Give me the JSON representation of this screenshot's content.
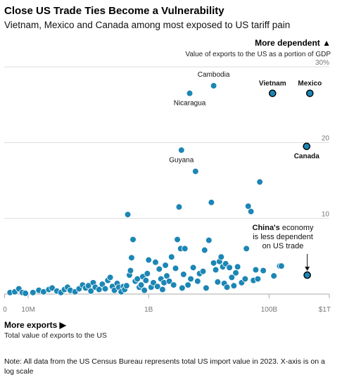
{
  "header": {
    "title": "Close US Trade Ties Become a Vulnerability",
    "subtitle": "Vietnam, Mexico and Canada among most exposed to US tariff pain"
  },
  "footer": {
    "note": "Note: All data from the US Census Bureau represents total US import value in 2023. X-axis is on a log scale"
  },
  "chart_data": {
    "type": "scatter",
    "y_axis": {
      "heading": "More dependent ▲",
      "label": "Value of exports to the US as a portion of GDP",
      "ticks": [
        {
          "value": 10,
          "label": "10"
        },
        {
          "value": 20,
          "label": "20"
        },
        {
          "value": 30,
          "label": "30%"
        }
      ],
      "ylim": [
        0,
        30
      ]
    },
    "x_axis": {
      "heading": "More exports ▶",
      "label": "Total value of exports to the US",
      "scale": "log",
      "ticks": [
        {
          "value": 10000000,
          "label": "10M"
        },
        {
          "value": 1000000000,
          "label": "1B"
        },
        {
          "value": 100000000000,
          "label": "100B"
        },
        {
          "value": 1000000000000,
          "label": "$1T"
        }
      ],
      "xlim": [
        4000000,
        1000000000000
      ]
    },
    "grid": true,
    "annotation": {
      "bold": "China's",
      "text": [
        " economy",
        "is less dependent",
        "on US trade"
      ],
      "target": "China"
    },
    "colors": {
      "point": "#1c86b5",
      "point_outline": "#ffffff",
      "highlight": "#1c86b5",
      "highlight_outline": "#000000",
      "grid": "#dddddd",
      "axis": "#aaaaaa"
    },
    "labeled_points": [
      {
        "name": "Cambodia",
        "x": 12000000000,
        "y": 27.5
      },
      {
        "name": "Nicaragua",
        "x": 4800000000,
        "y": 26.5
      },
      {
        "name": "Vietnam",
        "x": 114000000000,
        "y": 26.5,
        "highlight": true
      },
      {
        "name": "Mexico",
        "x": 475000000000,
        "y": 26.5,
        "highlight": true
      },
      {
        "name": "Canada",
        "x": 420000000000,
        "y": 19.5,
        "highlight": true
      },
      {
        "name": "Guyana",
        "x": 3500000000,
        "y": 19.0
      },
      {
        "name": "China",
        "x": 430000000000,
        "y": 2.5,
        "highlight": true
      }
    ],
    "points": [
      [
        5000000,
        0.2
      ],
      [
        6000000,
        0.3
      ],
      [
        7000000,
        0.7
      ],
      [
        8000000,
        0.2
      ],
      [
        9000000,
        0.1
      ],
      [
        12000000,
        0.2
      ],
      [
        15000000,
        0.5
      ],
      [
        18000000,
        0.3
      ],
      [
        22000000,
        0.6
      ],
      [
        25000000,
        0.8
      ],
      [
        30000000,
        0.4
      ],
      [
        35000000,
        0.2
      ],
      [
        40000000,
        0.6
      ],
      [
        45000000,
        0.9
      ],
      [
        50000000,
        0.5
      ],
      [
        60000000,
        0.3
      ],
      [
        70000000,
        0.7
      ],
      [
        80000000,
        1.2
      ],
      [
        90000000,
        0.8
      ],
      [
        100000000,
        1.1
      ],
      [
        110000000,
        0.4
      ],
      [
        120000000,
        1.5
      ],
      [
        130000000,
        0.9
      ],
      [
        150000000,
        0.6
      ],
      [
        170000000,
        1.3
      ],
      [
        190000000,
        0.7
      ],
      [
        210000000,
        1.8
      ],
      [
        230000000,
        2.2
      ],
      [
        250000000,
        1.0
      ],
      [
        270000000,
        0.5
      ],
      [
        300000000,
        1.4
      ],
      [
        320000000,
        0.9
      ],
      [
        350000000,
        0.3
      ],
      [
        380000000,
        1.0
      ],
      [
        400000000,
        0.6
      ],
      [
        430000000,
        1.1
      ],
      [
        450000000,
        10.5
      ],
      [
        480000000,
        2.5
      ],
      [
        500000000,
        3.1
      ],
      [
        520000000,
        4.8
      ],
      [
        550000000,
        7.2
      ],
      [
        600000000,
        1.7
      ],
      [
        650000000,
        2.0
      ],
      [
        700000000,
        0.9
      ],
      [
        750000000,
        1.2
      ],
      [
        800000000,
        2.3
      ],
      [
        850000000,
        0.5
      ],
      [
        900000000,
        1.8
      ],
      [
        950000000,
        2.7
      ],
      [
        1000000000,
        4.5
      ],
      [
        1100000000,
        0.9
      ],
      [
        1200000000,
        1.5
      ],
      [
        1300000000,
        4.2
      ],
      [
        1400000000,
        1.0
      ],
      [
        1500000000,
        3.3
      ],
      [
        1600000000,
        2.0
      ],
      [
        1700000000,
        0.6
      ],
      [
        1800000000,
        1.5
      ],
      [
        1900000000,
        3.8
      ],
      [
        2000000000,
        2.4
      ],
      [
        2200000000,
        1.7
      ],
      [
        2400000000,
        4.9
      ],
      [
        2600000000,
        1.2
      ],
      [
        2800000000,
        3.4
      ],
      [
        3000000000,
        7.2
      ],
      [
        3200000000,
        11.5
      ],
      [
        3400000000,
        6.0
      ],
      [
        3600000000,
        0.8
      ],
      [
        3800000000,
        2.6
      ],
      [
        4000000000,
        6.0
      ],
      [
        4500000000,
        1.2
      ],
      [
        5000000000,
        2.0
      ],
      [
        5500000000,
        3.5
      ],
      [
        6000000000,
        16.2
      ],
      [
        6500000000,
        1.7
      ],
      [
        7000000000,
        2.7
      ],
      [
        8000000000,
        3.0
      ],
      [
        8500000000,
        5.8
      ],
      [
        9000000000,
        0.8
      ],
      [
        10000000000,
        7.1
      ],
      [
        11000000000,
        12.1
      ],
      [
        12000000000,
        4.1
      ],
      [
        13000000000,
        3.2
      ],
      [
        14000000000,
        1.6
      ],
      [
        15000000000,
        4.3
      ],
      [
        16000000000,
        4.9
      ],
      [
        17000000000,
        3.6
      ],
      [
        18000000000,
        1.4
      ],
      [
        19000000000,
        4.0
      ],
      [
        20000000000,
        0.9
      ],
      [
        22000000000,
        3.5
      ],
      [
        24000000000,
        2.2
      ],
      [
        26000000000,
        1.1
      ],
      [
        28000000000,
        2.8
      ],
      [
        30000000000,
        3.6
      ],
      [
        35000000000,
        1.5
      ],
      [
        40000000000,
        2.0
      ],
      [
        42000000000,
        6.0
      ],
      [
        45000000000,
        11.6
      ],
      [
        50000000000,
        10.9
      ],
      [
        55000000000,
        1.8
      ],
      [
        60000000000,
        3.2
      ],
      [
        65000000000,
        2.0
      ],
      [
        70000000000,
        14.8
      ],
      [
        80000000000,
        3.1
      ],
      [
        120000000000,
        2.4
      ],
      [
        150000000000,
        3.7
      ],
      [
        160000000000,
        3.7
      ]
    ]
  }
}
